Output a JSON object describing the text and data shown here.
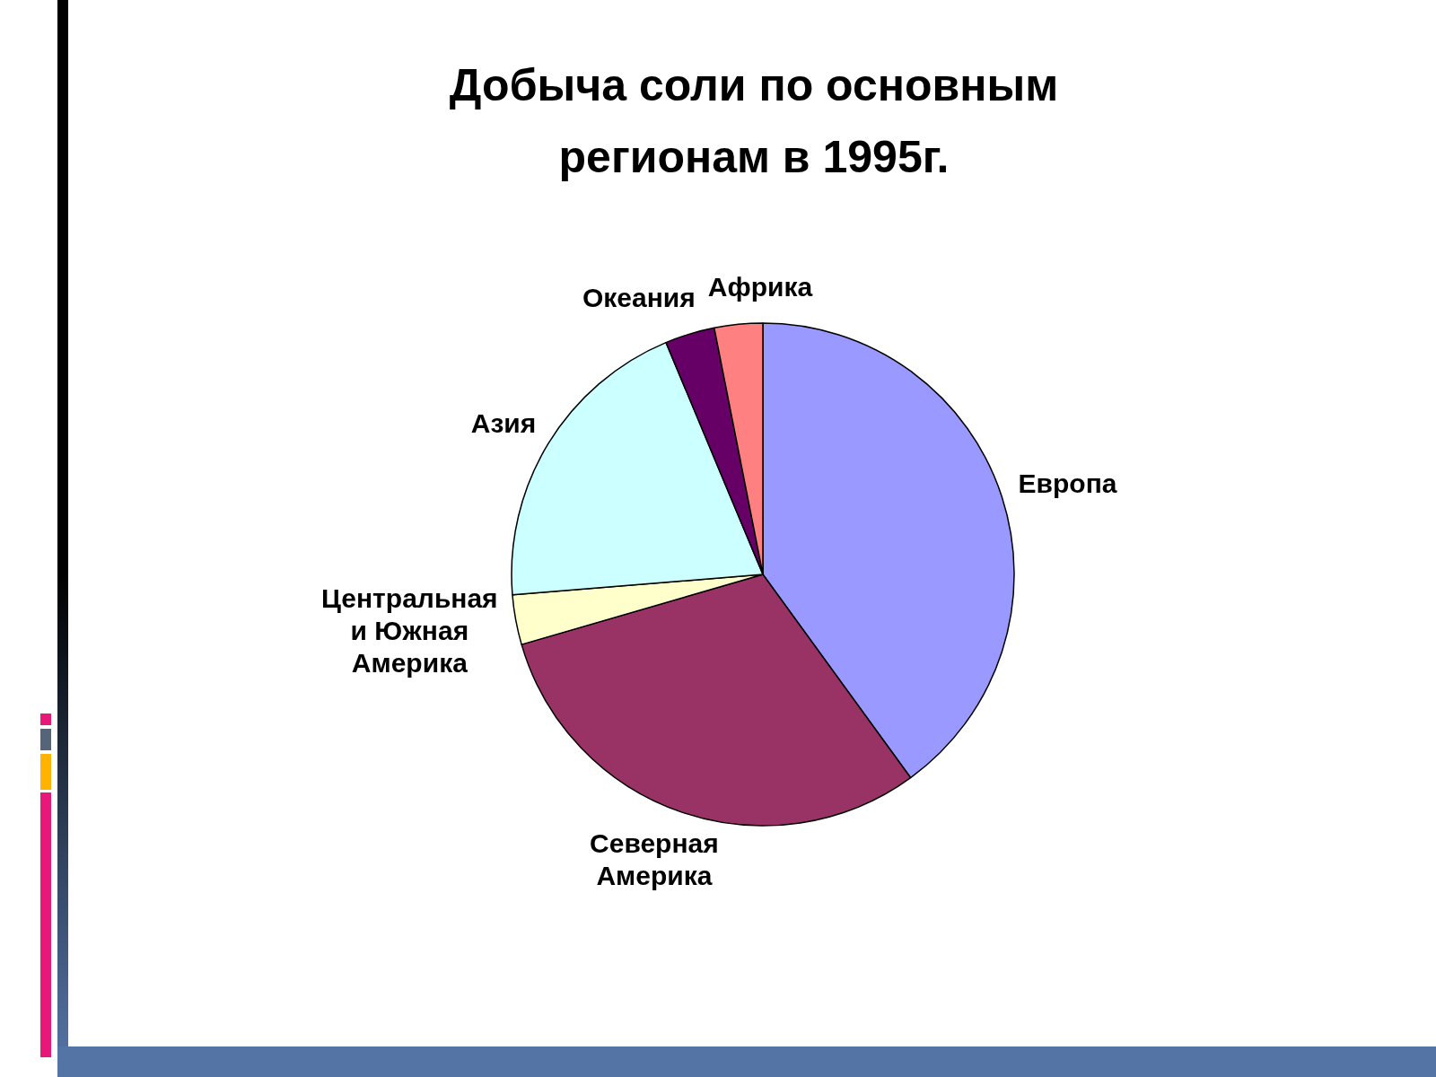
{
  "chart_data": {
    "type": "pie",
    "title": "Добыча соли по основным регионам в 1995г.",
    "categories": [
      "Европа",
      "Северная Америка",
      "Центральная и Южная Америка",
      "Азия",
      "Океания",
      "Африка"
    ],
    "values": [
      40,
      30.5,
      3.2,
      20,
      3.2,
      3.1
    ],
    "colors": [
      "#9999ff",
      "#993366",
      "#ffffcc",
      "#ccffff",
      "#660066",
      "#ff8080"
    ]
  }
}
